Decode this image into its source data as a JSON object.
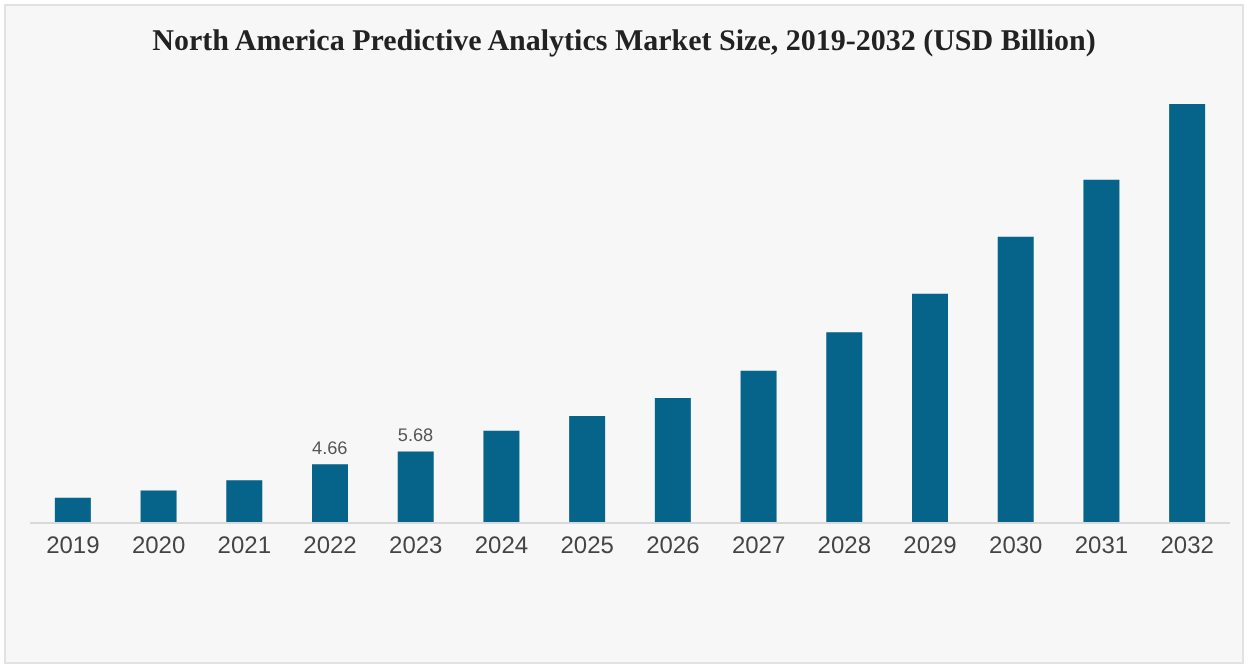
{
  "chart_data": {
    "type": "bar",
    "title": "North America Predictive Analytics Market Size, 2019-2032 (USD Billion)",
    "categories": [
      "2019",
      "2020",
      "2021",
      "2022",
      "2023",
      "2024",
      "2025",
      "2026",
      "2027",
      "2028",
      "2029",
      "2030",
      "2031",
      "2032"
    ],
    "values": [
      1.95,
      2.55,
      3.36,
      4.66,
      5.68,
      7.35,
      8.55,
      10.0,
      12.2,
      15.3,
      18.4,
      23.0,
      27.6,
      33.7
    ],
    "value_labels": [
      null,
      null,
      null,
      "4.66",
      "5.68",
      null,
      null,
      null,
      null,
      null,
      null,
      null,
      null,
      null
    ],
    "color": "#06638a",
    "grid": false,
    "tick_labels": "x"
  }
}
